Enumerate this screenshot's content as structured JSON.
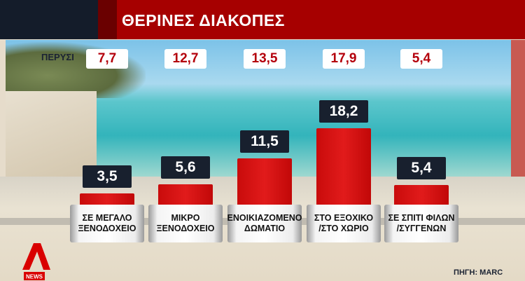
{
  "header": {
    "title": "ΘΕΡΙΝΕΣ ΔΙΑΚΟΠΕΣ"
  },
  "chart_data": {
    "type": "bar",
    "title": "ΘΕΡΙΝΕΣ ΔΙΑΚΟΠΕΣ",
    "categories": [
      "ΣΕ ΜΕΓΑΛΟ\nΞΕΝΟΔΟΧΕΙΟ",
      "ΜΙΚΡΟ\nΞΕΝΟΔΟΧΕΙΟ",
      "ΕΝΟΙΚΙΑΖΟΜΕΝΟ\nΔΩΜΑΤΙΟ",
      "ΣΤΟ ΕΞΟΧΙΚΟ\n/ΣΤΟ ΧΩΡΙΟ",
      "ΣΕ ΣΠΙΤΙ ΦΙΛΩΝ\n/ΣΥΓΓΕΝΩΝ"
    ],
    "values": [
      3.5,
      5.6,
      11.5,
      18.2,
      5.4
    ],
    "value_labels": [
      "3,5",
      "5,6",
      "11,5",
      "18,2",
      "5,4"
    ],
    "previous_label": "ΠΕΡΥΣΙ",
    "previous_values": [
      7.7,
      12.7,
      13.5,
      17.9,
      5.4
    ],
    "previous_value_labels": [
      "7,7",
      "12,7",
      "13,5",
      "17,9",
      "5,4"
    ],
    "bar_color": "#d91414",
    "grid": false
  },
  "source": "ΠΗΓΗ: MARC",
  "logo": {
    "text": "NEWS",
    "color": "#d90000"
  }
}
